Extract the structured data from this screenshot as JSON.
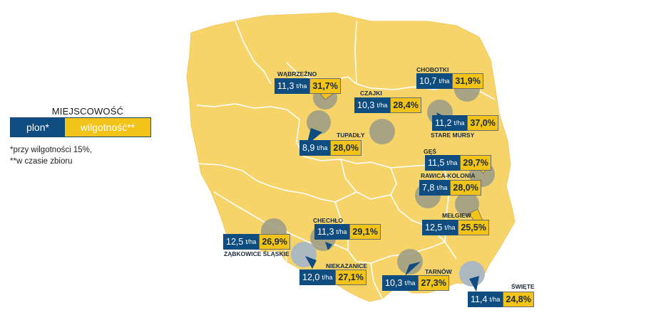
{
  "legend": {
    "title": "MIEJSCOWOŚĆ",
    "plon": "plon*",
    "wilgotnosc": "wilgotność**",
    "note1": "*przy wilgotności 15%,",
    "note2": "**w czasie zbioru"
  },
  "unit": "t/ha",
  "colors": {
    "land": "#f7d46a",
    "border": "#ffffff",
    "plon": "#0f4c80",
    "wilgotnosc": "#f2c318",
    "marker": "#9a9a86"
  },
  "locations": [
    {
      "name": "WĄBRZEŹNO",
      "plon": "11,3",
      "wilgotnosc": "31,7%"
    },
    {
      "name": "CZAJKI",
      "plon": "10,3",
      "wilgotnosc": "28,4%"
    },
    {
      "name": "CHOBOTKI",
      "plon": "10,7",
      "wilgotnosc": "31,9%"
    },
    {
      "name": "TUPADŁY",
      "plon": "8,9",
      "wilgotnosc": "28,0%"
    },
    {
      "name": "STARE MURSY",
      "plon": "11,2",
      "wilgotnosc": "37,0%"
    },
    {
      "name": "GĘŚ",
      "plon": "11,5",
      "wilgotnosc": "29,7%"
    },
    {
      "name": "RAWICA-KOLONIA",
      "plon": "7,8",
      "wilgotnosc": "28,0%"
    },
    {
      "name": "MEŁGIEW",
      "plon": "12,5",
      "wilgotnosc": "25,5%"
    },
    {
      "name": "CHECHŁO",
      "plon": "11,3",
      "wilgotnosc": "29,1%"
    },
    {
      "name": "ZĄBKOWICE ŚLĄSKIE",
      "plon": "12,5",
      "wilgotnosc": "26,9%"
    },
    {
      "name": "NIEKAZANICE",
      "plon": "12,0",
      "wilgotnosc": "27,1%"
    },
    {
      "name": "TARNÓW",
      "plon": "10,3",
      "wilgotnosc": "27,3%"
    },
    {
      "name": "ŚWIĘTE",
      "plon": "11,4",
      "wilgotnosc": "24,8%"
    }
  ]
}
